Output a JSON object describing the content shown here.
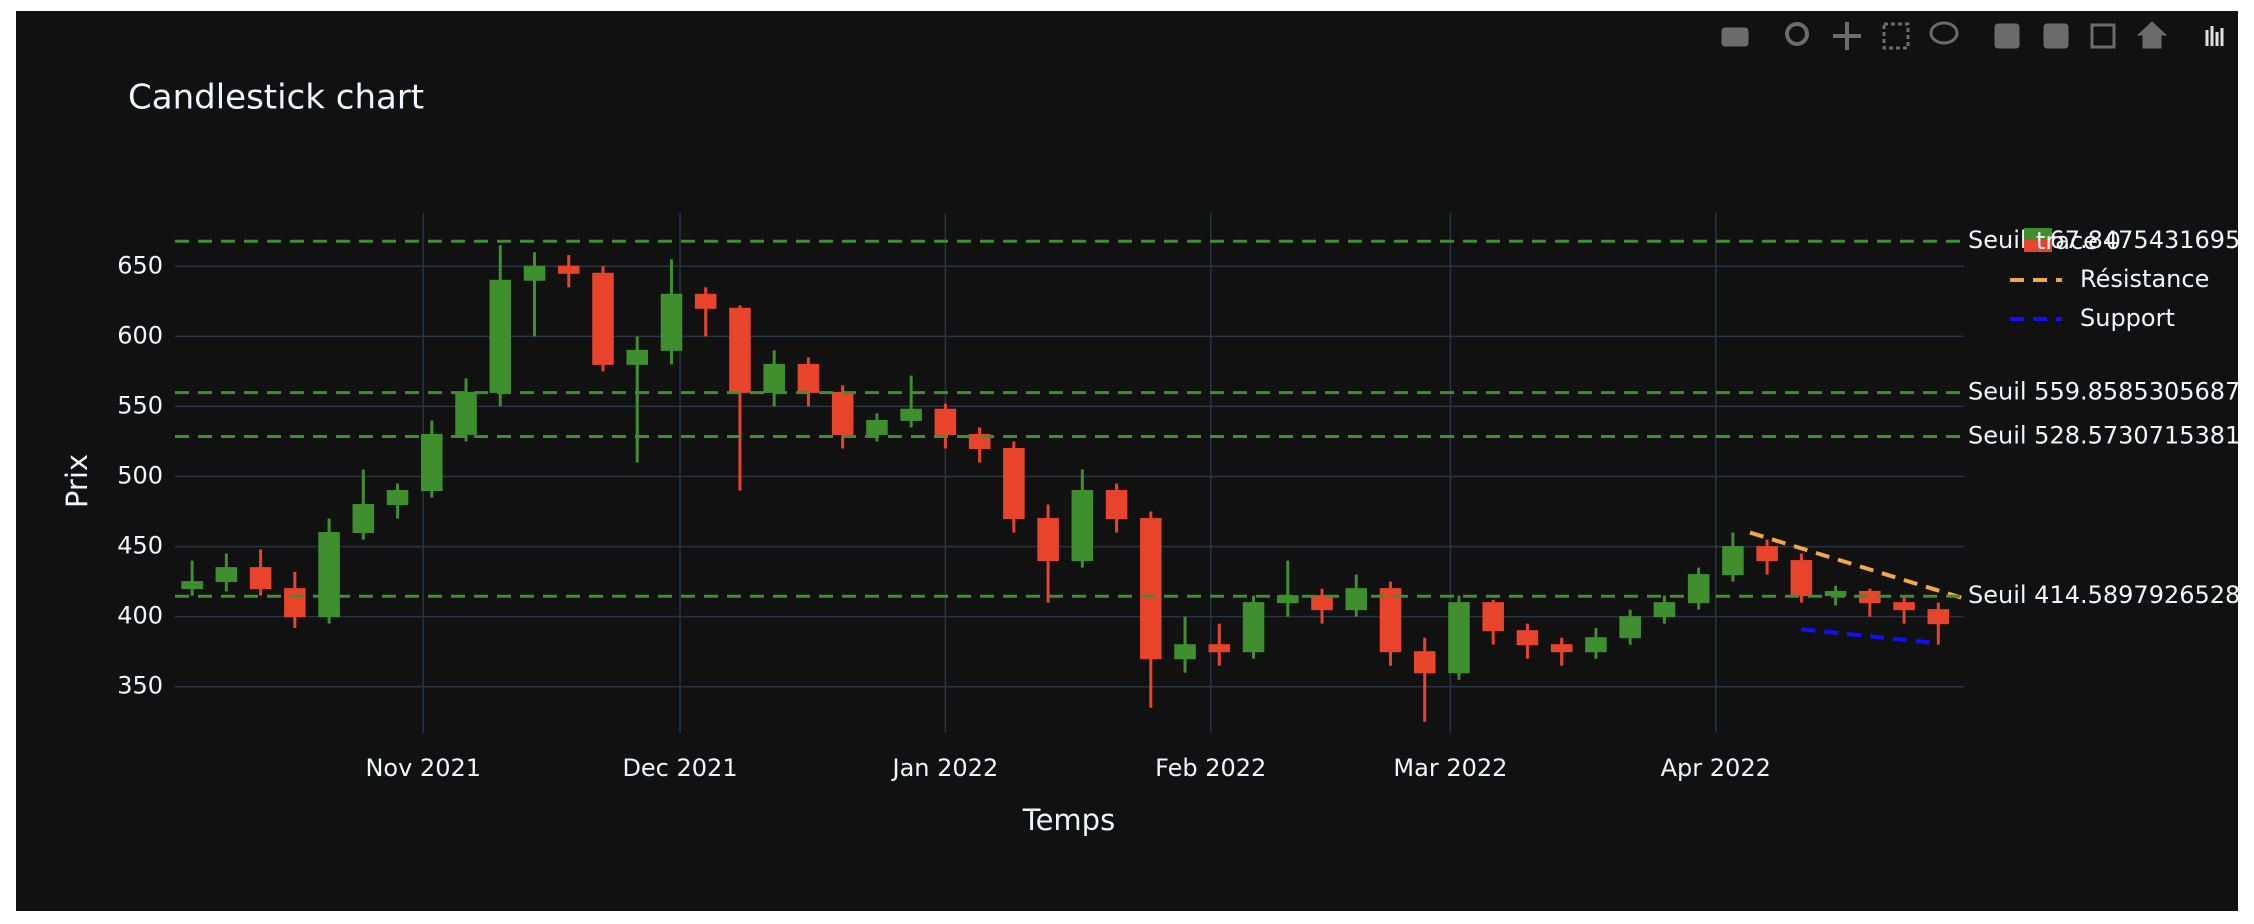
{
  "chart_data": {
    "type": "candlestick",
    "title": "Candlestick chart",
    "x_label": "Temps",
    "y_label": "Prix",
    "x": [
      "2021-10-05",
      "2021-10-09",
      "2021-10-13",
      "2021-10-17",
      "2021-10-21",
      "2021-10-25",
      "2021-10-29",
      "2021-11-02",
      "2021-11-06",
      "2021-11-10",
      "2021-11-14",
      "2021-11-18",
      "2021-11-22",
      "2021-11-26",
      "2021-11-30",
      "2021-12-04",
      "2021-12-08",
      "2021-12-12",
      "2021-12-16",
      "2021-12-20",
      "2021-12-24",
      "2021-12-28",
      "2022-01-01",
      "2022-01-05",
      "2022-01-09",
      "2022-01-13",
      "2022-01-17",
      "2022-01-21",
      "2022-01-25",
      "2022-01-29",
      "2022-02-02",
      "2022-02-06",
      "2022-02-10",
      "2022-02-14",
      "2022-02-18",
      "2022-02-22",
      "2022-02-26",
      "2022-03-02",
      "2022-03-06",
      "2022-03-10",
      "2022-03-14",
      "2022-03-18",
      "2022-03-22",
      "2022-03-26",
      "2022-03-30",
      "2022-04-03",
      "2022-04-07",
      "2022-04-11",
      "2022-04-15",
      "2022-04-19",
      "2022-04-23",
      "2022-04-27"
    ],
    "series": [
      {
        "name": "trace 0",
        "increasing_color": "#3f8f2f",
        "decreasing_color": "#e8442b",
        "open": [
          420,
          425,
          435,
          420,
          400,
          460,
          480,
          490,
          530,
          560,
          640,
          650,
          645,
          580,
          590,
          630,
          620,
          560,
          580,
          560,
          530,
          540,
          548,
          530,
          520,
          470,
          440,
          490,
          470,
          370,
          380,
          375,
          410,
          415,
          405,
          420,
          375,
          360,
          410,
          390,
          380,
          375,
          385,
          400,
          410,
          430,
          450,
          440,
          415,
          418,
          410,
          405
        ],
        "high": [
          440,
          445,
          448,
          432,
          470,
          505,
          495,
          540,
          570,
          665,
          660,
          658,
          650,
          600,
          655,
          635,
          622,
          590,
          585,
          565,
          545,
          572,
          552,
          535,
          525,
          480,
          505,
          495,
          475,
          400,
          395,
          415,
          440,
          420,
          430,
          425,
          385,
          415,
          412,
          395,
          385,
          392,
          405,
          415,
          435,
          460,
          455,
          445,
          422,
          420,
          415,
          410
        ],
        "low": [
          415,
          418,
          415,
          392,
          395,
          455,
          470,
          485,
          525,
          550,
          600,
          635,
          575,
          510,
          580,
          600,
          490,
          550,
          550,
          520,
          525,
          535,
          520,
          510,
          460,
          410,
          435,
          460,
          335,
          360,
          365,
          370,
          400,
          395,
          400,
          365,
          325,
          355,
          380,
          370,
          365,
          370,
          380,
          395,
          405,
          425,
          430,
          410,
          408,
          400,
          395,
          380
        ],
        "close": [
          425,
          435,
          420,
          400,
          460,
          480,
          490,
          530,
          560,
          640,
          650,
          645,
          580,
          590,
          630,
          620,
          560,
          580,
          560,
          530,
          540,
          548,
          530,
          520,
          470,
          440,
          490,
          470,
          370,
          380,
          375,
          410,
          415,
          405,
          420,
          375,
          360,
          410,
          390,
          380,
          375,
          385,
          400,
          410,
          430,
          450,
          440,
          415,
          418,
          410,
          405,
          395
        ]
      }
    ],
    "lines": [
      {
        "name": "Résistance",
        "color": "#f5a742",
        "x": [
          "2022-04-05",
          "2022-04-30"
        ],
        "values": [
          460,
          413
        ]
      },
      {
        "name": "Support",
        "color": "#1010ff",
        "x": [
          "2022-04-11",
          "2022-04-27"
        ],
        "values": [
          391,
          381
        ]
      }
    ],
    "hlines": {
      "color": "#3f8f2f",
      "items": [
        {
          "value": 667.8475431695,
          "label": "Seuil 667.8475431695"
        },
        {
          "value": 559.8585305687,
          "label": "Seuil 559.8585305687"
        },
        {
          "value": 528.5730715381,
          "label": "Seuil 528.5730715381"
        },
        {
          "value": 414.5897926528,
          "label": "Seuil 414.5897926528"
        }
      ]
    },
    "xlim": [
      "2021-10-03",
      "2022-04-30"
    ],
    "xticks": [
      {
        "value": "2021-11-01",
        "label": "Nov 2021"
      },
      {
        "value": "2021-12-01",
        "label": "Dec 2021"
      },
      {
        "value": "2022-01-01",
        "label": "Jan 2022"
      },
      {
        "value": "2022-02-01",
        "label": "Feb 2022"
      },
      {
        "value": "2022-03-01",
        "label": "Mar 2022"
      },
      {
        "value": "2022-04-01",
        "label": "Apr 2022"
      }
    ],
    "ylim": [
      317,
      688
    ],
    "yticks": [
      350,
      400,
      450,
      500,
      550,
      600,
      650
    ],
    "grid": true
  }
}
